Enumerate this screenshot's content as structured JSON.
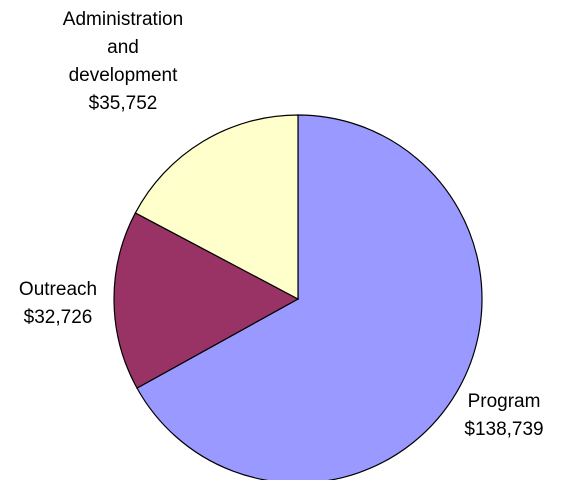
{
  "chart_data": {
    "type": "pie",
    "start_angle_deg": 0,
    "direction": "clockwise",
    "slices": [
      {
        "key": "program",
        "label_lines": [
          "Program",
          "$138,739"
        ],
        "value": 138739,
        "color": "#9999ff"
      },
      {
        "key": "outreach",
        "label_lines": [
          "Outreach",
          "$32,726"
        ],
        "value": 32726,
        "color": "#993366"
      },
      {
        "key": "admin",
        "label_lines": [
          "Administration",
          "and",
          "development",
          "$35,752"
        ],
        "value": 35752,
        "color": "#ffffcc"
      }
    ]
  }
}
